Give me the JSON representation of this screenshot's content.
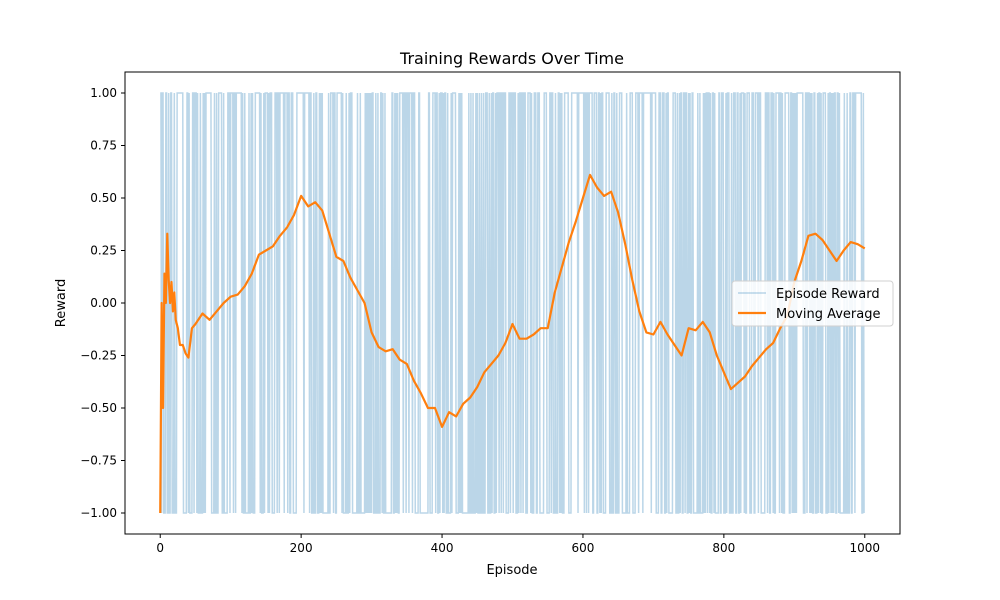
{
  "chart_data": {
    "type": "line",
    "title": "Training Rewards Over Time",
    "xlabel": "Episode",
    "ylabel": "Reward",
    "xlim": [
      -50,
      1050
    ],
    "ylim": [
      -1.1,
      1.1
    ],
    "x_ticks": [
      0,
      200,
      400,
      600,
      800,
      1000
    ],
    "x_tick_labels": [
      "0",
      "200",
      "400",
      "600",
      "800",
      "1000"
    ],
    "y_ticks": [
      -1.0,
      -0.75,
      -0.5,
      -0.25,
      0.0,
      0.25,
      0.5,
      0.75,
      1.0
    ],
    "y_tick_labels": [
      "−1.00",
      "−0.75",
      "−0.50",
      "−0.25",
      "0.00",
      "0.25",
      "0.50",
      "0.75",
      "1.00"
    ],
    "grid": false,
    "legend_position": "center-right",
    "series": [
      {
        "name": "Episode Reward",
        "color": "#1f77b4",
        "opacity": 0.3,
        "kind": "binary",
        "values_domain": [
          -1,
          1
        ],
        "episode_range": [
          0,
          999
        ],
        "note_values": "alternates between -1 and 1 every few episodes"
      },
      {
        "name": "Moving Average",
        "color": "#ff7f0e",
        "x": [
          0,
          2,
          4,
          6,
          8,
          10,
          12,
          14,
          16,
          18,
          20,
          22,
          25,
          28,
          32,
          36,
          40,
          45,
          50,
          60,
          70,
          80,
          90,
          100,
          110,
          120,
          130,
          140,
          150,
          160,
          170,
          180,
          190,
          200,
          210,
          220,
          230,
          240,
          250,
          260,
          270,
          280,
          290,
          300,
          310,
          320,
          330,
          340,
          350,
          360,
          370,
          380,
          390,
          400,
          410,
          420,
          430,
          440,
          450,
          460,
          470,
          480,
          490,
          500,
          510,
          520,
          530,
          540,
          550,
          560,
          570,
          580,
          590,
          600,
          610,
          620,
          630,
          640,
          650,
          660,
          670,
          680,
          690,
          700,
          710,
          720,
          730,
          740,
          750,
          760,
          770,
          780,
          790,
          800,
          810,
          820,
          830,
          840,
          850,
          860,
          870,
          880,
          890,
          900,
          910,
          920,
          930,
          940,
          950,
          960,
          970,
          980,
          990,
          1000
        ],
        "y": [
          -1.0,
          0.0,
          -0.5,
          0.14,
          0.0,
          0.33,
          0.11,
          0.0,
          0.1,
          -0.04,
          0.05,
          -0.08,
          -0.12,
          -0.2,
          -0.2,
          -0.24,
          -0.26,
          -0.12,
          -0.1,
          -0.05,
          -0.08,
          -0.04,
          0.0,
          0.03,
          0.04,
          0.08,
          0.14,
          0.23,
          0.25,
          0.27,
          0.32,
          0.36,
          0.42,
          0.51,
          0.46,
          0.48,
          0.44,
          0.33,
          0.22,
          0.2,
          0.12,
          0.06,
          0.0,
          -0.14,
          -0.21,
          -0.23,
          -0.22,
          -0.27,
          -0.29,
          -0.37,
          -0.43,
          -0.5,
          -0.5,
          -0.59,
          -0.52,
          -0.54,
          -0.48,
          -0.45,
          -0.4,
          -0.33,
          -0.29,
          -0.25,
          -0.19,
          -0.1,
          -0.17,
          -0.17,
          -0.15,
          -0.12,
          -0.12,
          0.05,
          0.17,
          0.29,
          0.39,
          0.5,
          0.61,
          0.55,
          0.51,
          0.53,
          0.43,
          0.28,
          0.11,
          -0.04,
          -0.14,
          -0.15,
          -0.09,
          -0.15,
          -0.2,
          -0.25,
          -0.12,
          -0.13,
          -0.09,
          -0.14,
          -0.25,
          -0.33,
          -0.41,
          -0.38,
          -0.35,
          -0.3,
          -0.26,
          -0.22,
          -0.19,
          -0.12,
          -0.06,
          0.1,
          0.2,
          0.32,
          0.33,
          0.3,
          0.25,
          0.2,
          0.25,
          0.29,
          0.28,
          0.26
        ]
      }
    ]
  }
}
